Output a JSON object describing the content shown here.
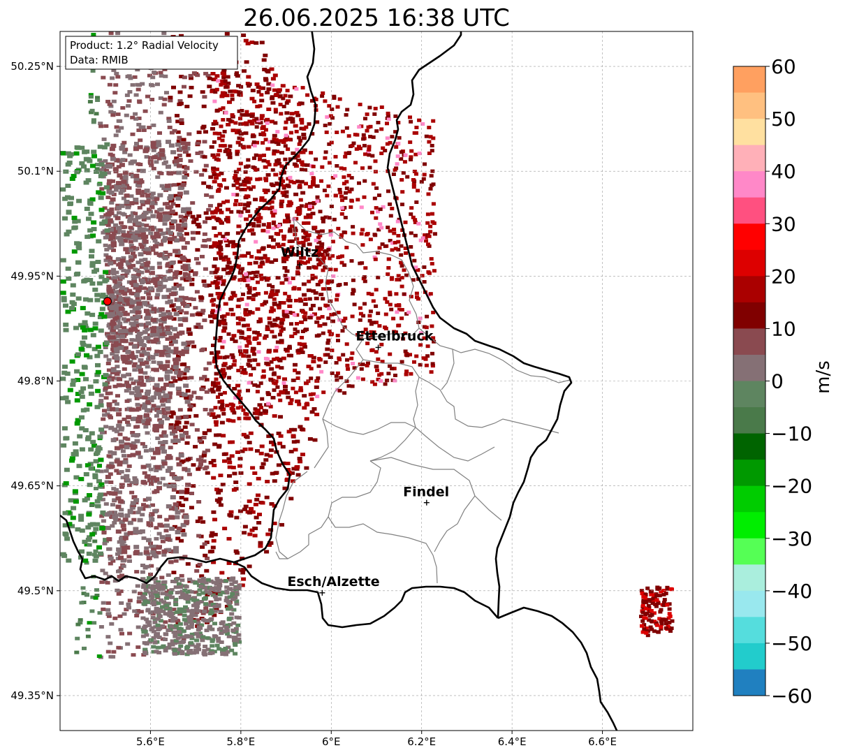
{
  "title": "26.06.2025 16:38 UTC",
  "info_box": {
    "line1": "Product: 1.2° Radial Velocity",
    "line2": "Data: RMIB"
  },
  "map": {
    "lon_range": [
      5.4,
      6.8
    ],
    "lat_range": [
      49.3,
      50.3
    ],
    "x_ticks": [
      {
        "value": 5.6,
        "label": "5.6°E"
      },
      {
        "value": 5.8,
        "label": "5.8°E"
      },
      {
        "value": 6.0,
        "label": "6°E"
      },
      {
        "value": 6.2,
        "label": "6.2°E"
      },
      {
        "value": 6.4,
        "label": "6.4°E"
      },
      {
        "value": 6.6,
        "label": "6.6°E"
      }
    ],
    "y_ticks": [
      {
        "value": 50.25,
        "label": "50.25°N"
      },
      {
        "value": 50.1,
        "label": "50.1°N"
      },
      {
        "value": 49.95,
        "label": "49.95°N"
      },
      {
        "value": 49.8,
        "label": "49.8°N"
      },
      {
        "value": 49.65,
        "label": "49.65°N"
      },
      {
        "value": 49.5,
        "label": "49.5°N"
      },
      {
        "value": 49.35,
        "label": "49.35°N"
      }
    ],
    "radar_site": {
      "lon": 5.505,
      "lat": 49.914
    },
    "cities": [
      {
        "name": "Wiltz",
        "lon": 5.93,
        "lat": 49.966,
        "label_lon": 5.93,
        "label_lat": 49.978
      },
      {
        "name": "Ettelbruck",
        "lon": 6.104,
        "lat": 49.848,
        "label_lon": 6.14,
        "label_lat": 49.858
      },
      {
        "name": "Findel",
        "lon": 6.211,
        "lat": 49.626,
        "label_lon": 6.21,
        "label_lat": 49.635
      },
      {
        "name": "Esch/Alzette",
        "lon": 5.98,
        "lat": 49.497,
        "label_lon": 6.005,
        "label_lat": 49.507
      }
    ]
  },
  "colorbar": {
    "label": "m/s",
    "min": -60,
    "max": 60,
    "ticks": [
      {
        "value": 60,
        "label": "60"
      },
      {
        "value": 50,
        "label": "50"
      },
      {
        "value": 40,
        "label": "40"
      },
      {
        "value": 30,
        "label": "30"
      },
      {
        "value": 20,
        "label": "20"
      },
      {
        "value": 10,
        "label": "10"
      },
      {
        "value": 0,
        "label": "0"
      },
      {
        "value": -10,
        "label": "−10"
      },
      {
        "value": -20,
        "label": "−20"
      },
      {
        "value": -30,
        "label": "−30"
      },
      {
        "value": -40,
        "label": "−40"
      },
      {
        "value": -50,
        "label": "−50"
      },
      {
        "value": -60,
        "label": "−60"
      }
    ],
    "colors": [
      {
        "from": 55,
        "to": 60,
        "color": "#ffa060"
      },
      {
        "from": 50,
        "to": 55,
        "color": "#ffc080"
      },
      {
        "from": 45,
        "to": 50,
        "color": "#ffe0a0"
      },
      {
        "from": 40,
        "to": 45,
        "color": "#ffb0b8"
      },
      {
        "from": 35,
        "to": 40,
        "color": "#ff88c8"
      },
      {
        "from": 30,
        "to": 35,
        "color": "#ff5080"
      },
      {
        "from": 25,
        "to": 30,
        "color": "#ff0000"
      },
      {
        "from": 20,
        "to": 25,
        "color": "#dd0000"
      },
      {
        "from": 15,
        "to": 20,
        "color": "#aa0000"
      },
      {
        "from": 10,
        "to": 15,
        "color": "#800000"
      },
      {
        "from": 5,
        "to": 10,
        "color": "#8a4a50"
      },
      {
        "from": 0,
        "to": 5,
        "color": "#857075"
      },
      {
        "from": -5,
        "to": 0,
        "color": "#5e8560"
      },
      {
        "from": -10,
        "to": -5,
        "color": "#4a7a4a"
      },
      {
        "from": -15,
        "to": -10,
        "color": "#006400"
      },
      {
        "from": -20,
        "to": -15,
        "color": "#009900"
      },
      {
        "from": -25,
        "to": -20,
        "color": "#00cc00"
      },
      {
        "from": -30,
        "to": -25,
        "color": "#00ee00"
      },
      {
        "from": -35,
        "to": -30,
        "color": "#55ff55"
      },
      {
        "from": -40,
        "to": -35,
        "color": "#aaeedd"
      },
      {
        "from": -45,
        "to": -40,
        "color": "#99e8ee"
      },
      {
        "from": -50,
        "to": -45,
        "color": "#55dddd"
      },
      {
        "from": -55,
        "to": -50,
        "color": "#22cccc"
      },
      {
        "from": -60,
        "to": -55,
        "color": "#2080c0"
      }
    ]
  }
}
